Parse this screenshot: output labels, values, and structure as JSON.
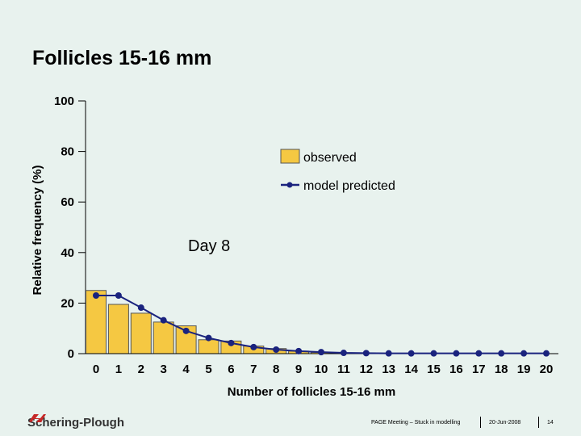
{
  "slide": {
    "title": "Follicles 15-16 mm"
  },
  "chart_data": {
    "type": "bar",
    "title": "Follicles 15-16 mm",
    "xlabel": "Number of follicles 15-16 mm",
    "ylabel": "Relative frequency (%)",
    "ylim": [
      0,
      100
    ],
    "yticks": [
      "0",
      "20",
      "40",
      "60",
      "80",
      "100"
    ],
    "categories": [
      "0",
      "1",
      "2",
      "3",
      "4",
      "5",
      "6",
      "7",
      "8",
      "9",
      "10",
      "11",
      "12",
      "13",
      "14",
      "15",
      "16",
      "17",
      "18",
      "19",
      "20"
    ],
    "series": [
      {
        "name": "observed",
        "kind": "bar",
        "values": [
          25,
          19.5,
          16,
          12.5,
          11,
          5.5,
          5,
          3,
          2,
          1,
          0.5,
          0,
          0,
          0,
          0,
          0,
          0,
          0,
          0,
          0,
          0
        ]
      },
      {
        "name": "model predicted",
        "kind": "line",
        "values": [
          23,
          23,
          18.2,
          13.2,
          9,
          6.2,
          4.2,
          2.6,
          1.6,
          1,
          0.6,
          0.3,
          0.2,
          0.1,
          0.1,
          0.1,
          0.1,
          0.1,
          0.1,
          0.1,
          0.1
        ]
      }
    ],
    "legend": [
      "observed",
      "model predicted"
    ],
    "legend_position": "top-right",
    "annotation": "Day 8",
    "colors": {
      "bar": "#f5c842",
      "bar_edge": "#555555",
      "line": "#1a237e"
    }
  },
  "footer": {
    "logo_text": "Schering-Plough",
    "meeting": "PAGE Meeting – Stuck in modelling",
    "date": "20-Jun-2008",
    "page": "14"
  }
}
